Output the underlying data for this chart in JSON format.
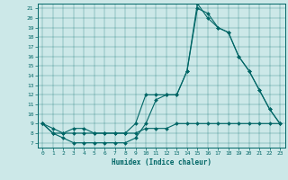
{
  "xlabel": "Humidex (Indice chaleur)",
  "bg_color": "#cce8e8",
  "line_color": "#006666",
  "xlim": [
    -0.5,
    23.5
  ],
  "ylim": [
    6.5,
    21.5
  ],
  "xticks": [
    0,
    1,
    2,
    3,
    4,
    5,
    6,
    7,
    8,
    9,
    10,
    11,
    12,
    13,
    14,
    15,
    16,
    17,
    18,
    19,
    20,
    21,
    22,
    23
  ],
  "yticks": [
    7,
    8,
    9,
    10,
    11,
    12,
    13,
    14,
    15,
    16,
    17,
    18,
    19,
    20,
    21
  ],
  "line1_x": [
    0,
    1,
    2,
    3,
    4,
    5,
    6,
    7,
    8,
    9,
    10,
    11,
    12,
    13,
    14,
    15,
    16,
    17,
    18,
    19,
    20,
    21,
    22,
    23
  ],
  "line1_y": [
    9,
    8,
    7.5,
    7,
    7,
    7,
    7,
    7,
    7,
    7.5,
    9,
    11.5,
    12,
    12,
    14.5,
    21,
    20.5,
    19,
    18.5,
    16,
    14.5,
    12.5,
    10.5,
    9
  ],
  "line2_x": [
    0,
    1,
    2,
    3,
    4,
    5,
    6,
    7,
    8,
    9,
    10,
    11,
    12,
    13,
    14,
    15,
    16,
    17,
    18,
    19,
    20,
    21,
    22,
    23
  ],
  "line2_y": [
    9,
    8.5,
    8,
    8.5,
    8.5,
    8,
    8,
    8,
    8,
    9,
    12,
    12,
    12,
    12,
    14.5,
    21.5,
    20,
    19,
    18.5,
    16,
    14.5,
    12.5,
    10.5,
    9
  ],
  "line3_x": [
    0,
    1,
    2,
    3,
    4,
    5,
    6,
    7,
    8,
    9,
    10,
    11,
    12,
    13,
    14,
    15,
    16,
    17,
    18,
    19,
    20,
    21,
    22,
    23
  ],
  "line3_y": [
    9,
    8,
    8,
    8,
    8,
    8,
    8,
    8,
    8,
    8,
    8.5,
    8.5,
    8.5,
    9,
    9,
    9,
    9,
    9,
    9,
    9,
    9,
    9,
    9,
    9
  ]
}
